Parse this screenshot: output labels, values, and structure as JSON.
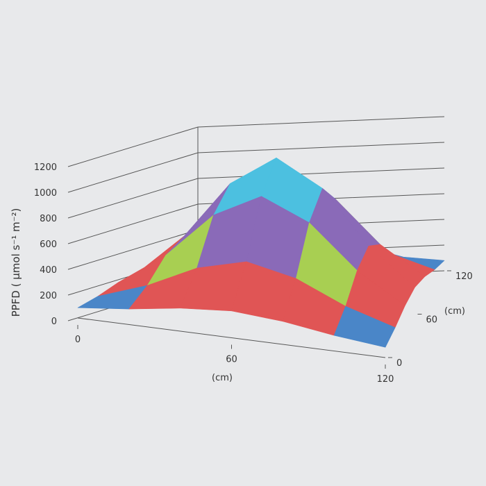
{
  "chart_data": {
    "type": "surface",
    "zlabel": "PPFD ( µmol s⁻¹ m⁻²)",
    "xlabel": "(cm)",
    "ylabel": "(cm)",
    "x": [
      0,
      20,
      40,
      60,
      80,
      100,
      120
    ],
    "y": [
      0,
      20,
      40,
      60,
      80,
      100,
      120
    ],
    "z": [
      [
        80,
        121,
        179,
        209,
        179,
        121,
        80
      ],
      [
        121,
        246,
        422,
        512,
        422,
        246,
        121
      ],
      [
        179,
        422,
        765,
        941,
        765,
        422,
        179
      ],
      [
        209,
        512,
        941,
        1160,
        941,
        512,
        209
      ],
      [
        179,
        422,
        765,
        941,
        765,
        422,
        179
      ],
      [
        121,
        246,
        422,
        512,
        422,
        246,
        121
      ],
      [
        80,
        121,
        179,
        209,
        179,
        121,
        80
      ]
    ],
    "band_colors": [
      "#4a86c8",
      "#e05555",
      "#a8cf52",
      "#8a6ab8",
      "#4cc0e0",
      "#f5a040"
    ],
    "xlim": [
      0,
      120
    ],
    "ylim": [
      0,
      120
    ],
    "zlim": [
      0,
      1200
    ],
    "xticks": [
      0,
      60,
      120
    ],
    "yticks": [
      0,
      60,
      120
    ],
    "zticks": [
      0,
      200,
      400,
      600,
      800,
      1000,
      1200
    ]
  }
}
